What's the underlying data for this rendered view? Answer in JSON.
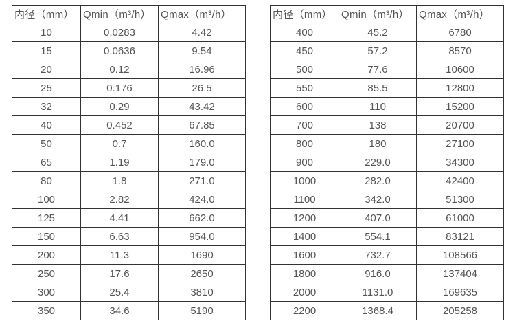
{
  "colors": {
    "border": "#333333",
    "text": "#555555",
    "background": "#ffffff"
  },
  "tables": [
    {
      "name": "flow-rate-table-small-diameters",
      "headers": [
        "内径（mm）",
        "Qmin（m³/h）",
        "Qmax（m³/h）"
      ],
      "rows": [
        [
          "10",
          "0.0283",
          "4.42"
        ],
        [
          "15",
          "0.0636",
          "9.54"
        ],
        [
          "20",
          "0.12",
          "16.96"
        ],
        [
          "25",
          "0.176",
          "26.5"
        ],
        [
          "32",
          "0.29",
          "43.42"
        ],
        [
          "40",
          "0.452",
          "67.85"
        ],
        [
          "50",
          "0.7",
          "160.0"
        ],
        [
          "65",
          "1.19",
          "179.0"
        ],
        [
          "80",
          "1.8",
          "271.0"
        ],
        [
          "100",
          "2.82",
          "424.0"
        ],
        [
          "125",
          "4.41",
          "662.0"
        ],
        [
          "150",
          "6.63",
          "954.0"
        ],
        [
          "200",
          "11.3",
          "1690"
        ],
        [
          "250",
          "17.6",
          "2650"
        ],
        [
          "300",
          "25.4",
          "3810"
        ],
        [
          "350",
          "34.6",
          "5190"
        ]
      ]
    },
    {
      "name": "flow-rate-table-large-diameters",
      "headers": [
        "内径（mm）",
        "Qmin（m³/h）",
        "Qmax（m³/h）"
      ],
      "rows": [
        [
          "400",
          "45.2",
          "6780"
        ],
        [
          "450",
          "57.2",
          "8570"
        ],
        [
          "500",
          "77.6",
          "10600"
        ],
        [
          "550",
          "85.5",
          "12800"
        ],
        [
          "600",
          "110",
          "15200"
        ],
        [
          "700",
          "138",
          "20700"
        ],
        [
          "800",
          "180",
          "27100"
        ],
        [
          "900",
          "229.0",
          "34300"
        ],
        [
          "1000",
          "282.0",
          "42400"
        ],
        [
          "1100",
          "342.0",
          "51300"
        ],
        [
          "1200",
          "407.0",
          "61000"
        ],
        [
          "1400",
          "554.1",
          "83121"
        ],
        [
          "1600",
          "732.7",
          "108566"
        ],
        [
          "1800",
          "916.0",
          "137404"
        ],
        [
          "2000",
          "1131.0",
          "169635"
        ],
        [
          "2200",
          "1368.4",
          "205258"
        ]
      ]
    }
  ]
}
